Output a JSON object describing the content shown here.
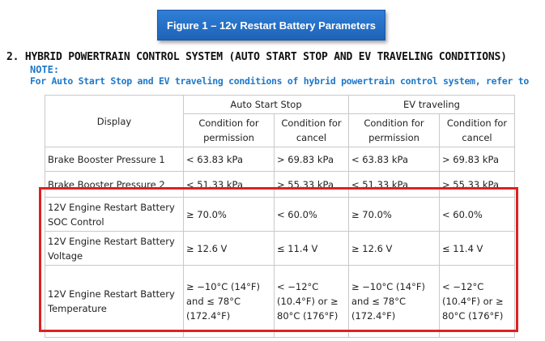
{
  "banner": {
    "title": "Figure 1 – 12v Restart Battery Parameters"
  },
  "section": {
    "heading": "2. HYBRID POWERTRAIN CONTROL SYSTEM (AUTO START STOP AND EV TRAVELING CONDITIONS)",
    "note_label": "NOTE:",
    "note_text": "For Auto Start Stop and EV traveling conditions of hybrid powertrain control system, refer to"
  },
  "table": {
    "display_header": "Display",
    "group_headers": [
      "Auto Start Stop",
      "EV traveling"
    ],
    "sub_headers": [
      "Condition for permission",
      "Condition for cancel",
      "Condition for permission",
      "Condition for cancel"
    ],
    "rows": [
      {
        "display": "Brake Booster Pressure 1",
        "cells": [
          "< 63.83 kPa",
          "> 69.83 kPa",
          "< 63.83 kPa",
          "> 69.83 kPa"
        ]
      },
      {
        "display": "Brake Booster Pressure 2",
        "cells": [
          "< 51.33 kPa",
          "> 55.33 kPa",
          "< 51.33 kPa",
          "> 55.33 kPa"
        ]
      },
      {
        "display": "12V Engine Restart Battery SOC Control",
        "cells": [
          "≥ 70.0%",
          "< 60.0%",
          "≥ 70.0%",
          "< 60.0%"
        ]
      },
      {
        "display": "12V Engine Restart Battery Voltage",
        "cells": [
          "≥ 12.6 V",
          "≤ 11.4 V",
          "≥ 12.6 V",
          "≤ 11.4 V"
        ]
      },
      {
        "display": "12V Engine Restart Battery Temperature",
        "cells": [
          "≥ −10°C (14°F) and ≤ 78°C (172.4°F)",
          "< −12°C (10.4°F) or ≥ 80°C (176°F)",
          "≥ −10°C (14°F) and ≤ 78°C (172.4°F)",
          "< −12°C (10.4°F) or ≥ 80°C (176°F)"
        ]
      }
    ]
  },
  "colors": {
    "banner": "#1f63b8",
    "note": "#1f78c8",
    "highlight": "#e02020",
    "grid": "#c9c9c9"
  }
}
